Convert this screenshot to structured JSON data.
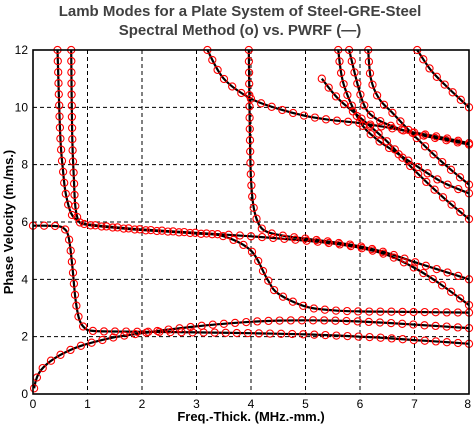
{
  "chart_data": {
    "type": "line",
    "title": "Lamb Modes for a Plate System of Steel-GRE-Steel",
    "subtitle": "Spectral Method (o) vs. PWRF (—)",
    "xlabel": "Freq.-Thick. (MHz.-mm.)",
    "ylabel": "Phase Velocity (m./ms.)",
    "xlim": [
      0,
      8
    ],
    "ylim": [
      0,
      12
    ],
    "x_ticks": [
      0,
      1,
      2,
      3,
      4,
      5,
      6,
      7,
      8
    ],
    "y_ticks": [
      0,
      2,
      4,
      6,
      8,
      10,
      12
    ],
    "grid": true,
    "legend": "in subtitle",
    "colors": {
      "line": "#000000",
      "markers": "#ff0000",
      "frame": "#000000",
      "grid": "#000000"
    },
    "series": [
      {
        "x": [
          0.02,
          0.05,
          0.1,
          0.2,
          0.4,
          0.7,
          1.0,
          1.5,
          2.0,
          2.5,
          3.0,
          3.5,
          4.0,
          4.5,
          5.0,
          5.5,
          6.0,
          6.5,
          7.0,
          7.5,
          8.0
        ],
        "y": [
          0.2,
          0.45,
          0.7,
          0.95,
          1.25,
          1.55,
          1.75,
          1.98,
          2.12,
          2.25,
          2.36,
          2.45,
          2.52,
          2.56,
          2.57,
          2.56,
          2.53,
          2.48,
          2.42,
          2.36,
          2.3
        ]
      },
      {
        "x": [
          0.0,
          0.2,
          0.4,
          0.55,
          0.65,
          0.72,
          0.78,
          0.85,
          0.95,
          1.1,
          1.5,
          2.0,
          3.0,
          4.0,
          5.0,
          6.0,
          6.5,
          7.0,
          7.5,
          8.0
        ],
        "y": [
          5.87,
          5.87,
          5.86,
          5.8,
          5.5,
          4.5,
          3.3,
          2.6,
          2.3,
          2.2,
          2.18,
          2.17,
          2.15,
          2.12,
          2.08,
          2.0,
          1.95,
          1.88,
          1.82,
          1.75
        ]
      },
      {
        "x": [
          0.45,
          0.5,
          0.55,
          0.6,
          0.7,
          0.85,
          1.0,
          1.5,
          2.0,
          3.0,
          3.5,
          4.0,
          4.3,
          4.5,
          5.0,
          5.5,
          6.0,
          6.5,
          7.0,
          7.5,
          8.0
        ],
        "y": [
          12.0,
          9.0,
          7.8,
          7.0,
          6.3,
          6.0,
          5.9,
          5.8,
          5.72,
          5.6,
          5.5,
          5.0,
          4.0,
          3.5,
          3.05,
          2.92,
          2.88,
          2.87,
          2.86,
          2.85,
          2.84
        ]
      },
      {
        "x": [
          0.7,
          0.72,
          0.75,
          0.78,
          0.85,
          1.0,
          1.5,
          2.0,
          3.0,
          4.0,
          5.0,
          5.5,
          6.0,
          6.5,
          7.0,
          7.5,
          8.0
        ],
        "y": [
          12.0,
          9.0,
          7.5,
          6.5,
          6.0,
          5.92,
          5.82,
          5.74,
          5.62,
          5.5,
          5.35,
          5.25,
          5.1,
          4.85,
          4.4,
          3.8,
          3.1
        ]
      },
      {
        "x": [
          3.96,
          3.98,
          4.0,
          4.05,
          4.15,
          4.3,
          4.6,
          5.0,
          5.5,
          6.0,
          6.5,
          7.0,
          7.5,
          8.0
        ],
        "y": [
          12.0,
          9.0,
          7.5,
          6.5,
          5.9,
          5.65,
          5.52,
          5.42,
          5.3,
          5.15,
          4.92,
          4.6,
          4.3,
          4.0
        ]
      },
      {
        "x": [
          3.2,
          3.5,
          4.0,
          4.5,
          5.0,
          5.5,
          6.0,
          6.5,
          7.0,
          7.5,
          8.0
        ],
        "y": [
          12.0,
          11.0,
          10.3,
          9.95,
          9.7,
          9.55,
          9.45,
          9.3,
          9.12,
          8.95,
          8.75
        ]
      },
      {
        "x": [
          5.6,
          5.7,
          6.0,
          6.3,
          6.6,
          7.0,
          7.5,
          8.0
        ],
        "y": [
          12.0,
          10.8,
          9.5,
          8.9,
          8.5,
          8.0,
          7.4,
          7.0
        ]
      },
      {
        "x": [
          5.3,
          5.6,
          6.0,
          6.5,
          7.0,
          7.5,
          8.0
        ],
        "y": [
          11.0,
          10.3,
          9.65,
          8.8,
          7.8,
          6.9,
          6.1
        ]
      },
      {
        "x": [
          6.15,
          6.2,
          6.35,
          6.6,
          7.0,
          7.5,
          8.0
        ],
        "y": [
          12.0,
          11.0,
          10.3,
          9.8,
          9.0,
          8.1,
          7.3
        ]
      },
      {
        "x": [
          5.8,
          6.05,
          6.3,
          6.8,
          7.2,
          7.6,
          8.0
        ],
        "y": [
          12.0,
          10.2,
          9.6,
          9.2,
          9.0,
          8.85,
          8.7
        ]
      },
      {
        "x": [
          7.05,
          7.3,
          7.55,
          7.8,
          8.0
        ],
        "y": [
          12.0,
          11.3,
          10.8,
          10.35,
          10.0
        ]
      }
    ]
  }
}
